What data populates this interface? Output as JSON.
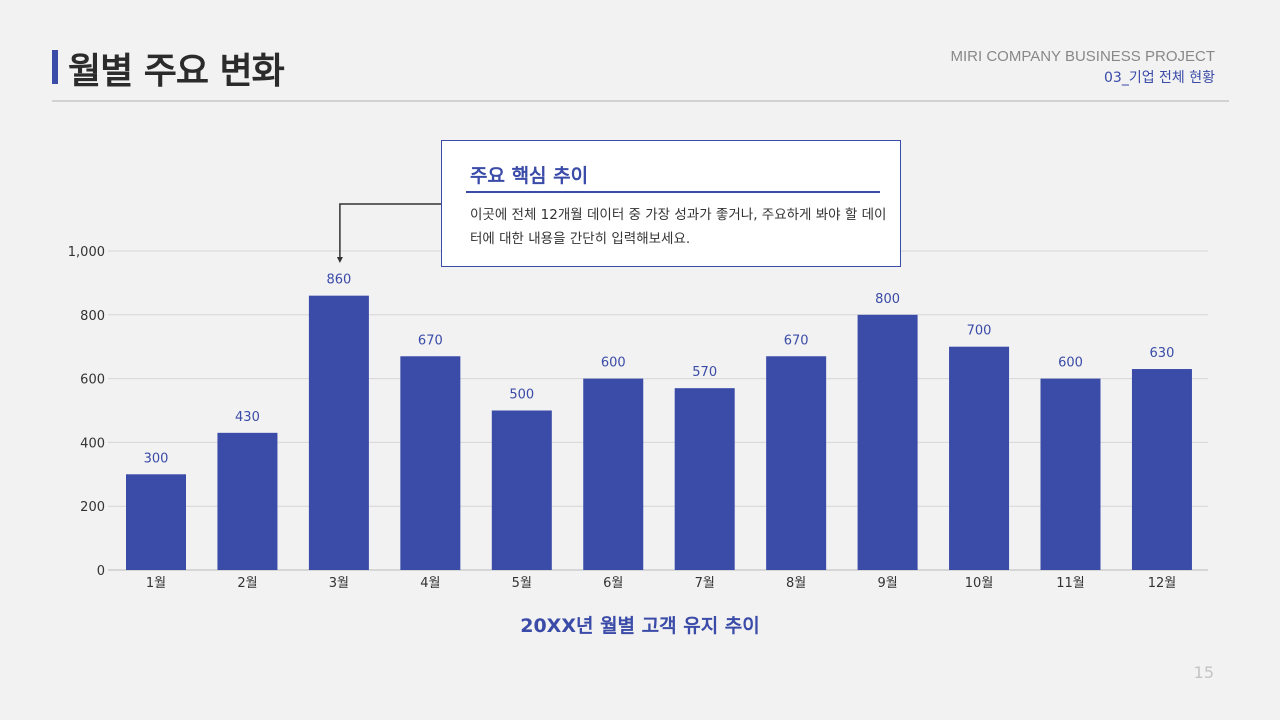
{
  "header": {
    "title": "월별 주요 변화",
    "company": "MIRI COMPANY BUSINESS PROJECT",
    "section": "03_기업 전체 현황"
  },
  "callout": {
    "title": "주요 핵심 추이",
    "body": "이곳에 전체 12개월 데이터 중 가장 성과가 좋거나, 주요하게 봐야 할 데이터에 대한 내용을 간단히 입력해보세요.",
    "target_category": "3월"
  },
  "chart_data": {
    "type": "bar",
    "title": "20XX년 월별 고객 유지 추이",
    "categories": [
      "1월",
      "2월",
      "3월",
      "4월",
      "5월",
      "6월",
      "7월",
      "8월",
      "9월",
      "10월",
      "11월",
      "12월"
    ],
    "values": [
      300,
      430,
      860,
      670,
      500,
      600,
      570,
      670,
      800,
      700,
      600,
      630
    ],
    "ylim": [
      0,
      1000
    ],
    "yticks": [
      0,
      200,
      400,
      600,
      800,
      1000
    ],
    "ytick_labels": [
      "0",
      "200",
      "400",
      "600",
      "800",
      "1,000"
    ],
    "grid": true,
    "data_labels": true,
    "bar_color": "#3a4ba8"
  },
  "footer": {
    "page_number": "15"
  }
}
